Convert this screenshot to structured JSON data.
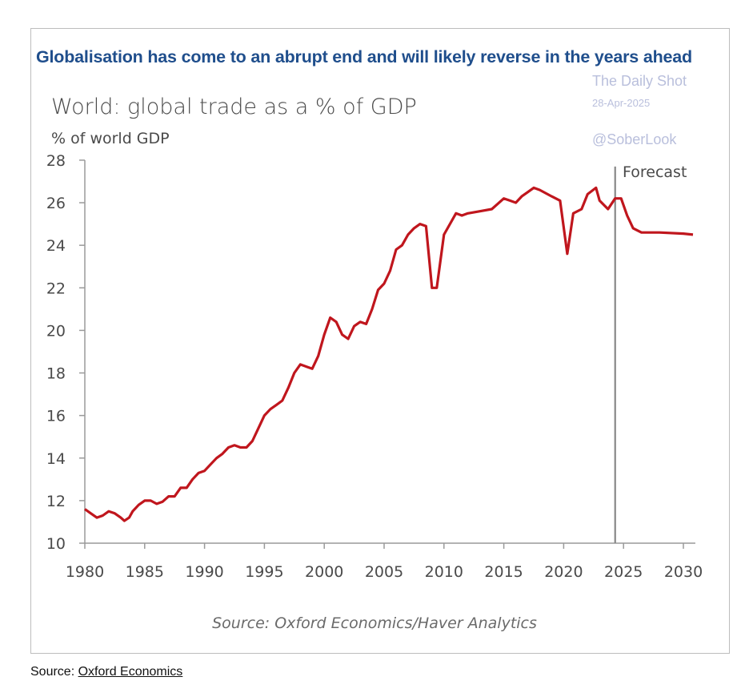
{
  "headline": "Globalisation has come to an abrupt end and will likely reverse in the years ahead",
  "watermark": {
    "name": "The Daily Shot",
    "date": "28-Apr-2025",
    "handle": "@SoberLook"
  },
  "footer": {
    "prefix": "Source: ",
    "link": "Oxford Economics"
  },
  "chart_data": {
    "type": "line",
    "title": "World: global trade as a % of GDP",
    "ylabel": "% of world GDP",
    "xlabel": "",
    "source": "Source: Oxford Economics/Haver Analytics",
    "annotation": "Forecast",
    "forecast_start": 2024.3,
    "xlim": [
      1980,
      2031
    ],
    "ylim": [
      10,
      28
    ],
    "xticks": [
      1980,
      1985,
      1990,
      1995,
      2000,
      2005,
      2010,
      2015,
      2020,
      2025,
      2030
    ],
    "yticks": [
      10,
      12,
      14,
      16,
      18,
      20,
      22,
      24,
      26,
      28
    ],
    "grid": false,
    "color": "#c0161d",
    "series": [
      {
        "name": "Global trade % of GDP",
        "x": [
          1980,
          1980.5,
          1981,
          1981.5,
          1982,
          1982.5,
          1983,
          1983.3,
          1983.7,
          1984,
          1984.5,
          1985,
          1985.5,
          1986,
          1986.5,
          1987,
          1987.5,
          1988,
          1988.5,
          1989,
          1989.5,
          1990,
          1990.5,
          1991,
          1991.5,
          1992,
          1992.5,
          1993,
          1993.5,
          1994,
          1994.5,
          1995,
          1995.5,
          1996,
          1996.5,
          1997,
          1997.5,
          1998,
          1998.5,
          1999,
          1999.5,
          2000,
          2000.5,
          2001,
          2001.5,
          2002,
          2002.5,
          2003,
          2003.5,
          2004,
          2004.5,
          2005,
          2005.5,
          2006,
          2006.5,
          2007,
          2007.5,
          2008,
          2008.5,
          2009,
          2009.4,
          2010,
          2010.5,
          2011,
          2011.5,
          2012,
          2013,
          2014,
          2015,
          2016,
          2016.5,
          2017,
          2017.5,
          2018,
          2019,
          2019.7,
          2020.3,
          2020.8,
          2021.5,
          2022,
          2022.7,
          2023,
          2023.7,
          2024.3,
          2024.8,
          2025.3,
          2025.8,
          2026.5,
          2028,
          2030,
          2030.8
        ],
        "y": [
          11.6,
          11.4,
          11.2,
          11.3,
          11.5,
          11.4,
          11.2,
          11.05,
          11.2,
          11.5,
          11.8,
          12.0,
          12.0,
          11.85,
          11.95,
          12.2,
          12.2,
          12.6,
          12.6,
          13.0,
          13.3,
          13.4,
          13.7,
          14.0,
          14.2,
          14.5,
          14.6,
          14.5,
          14.5,
          14.8,
          15.4,
          16.0,
          16.3,
          16.5,
          16.7,
          17.3,
          18.0,
          18.4,
          18.3,
          18.2,
          18.8,
          19.8,
          20.6,
          20.4,
          19.8,
          19.6,
          20.2,
          20.4,
          20.3,
          21.0,
          21.9,
          22.2,
          22.8,
          23.8,
          24.0,
          24.5,
          24.8,
          25.0,
          24.9,
          22.0,
          22.0,
          24.5,
          25.0,
          25.5,
          25.4,
          25.5,
          25.6,
          25.7,
          26.2,
          26.0,
          26.3,
          26.5,
          26.7,
          26.6,
          26.3,
          26.1,
          23.6,
          25.5,
          25.7,
          26.4,
          26.7,
          26.1,
          25.7,
          26.2,
          26.2,
          25.4,
          24.8,
          24.6,
          24.6,
          24.55,
          24.5
        ]
      }
    ]
  }
}
